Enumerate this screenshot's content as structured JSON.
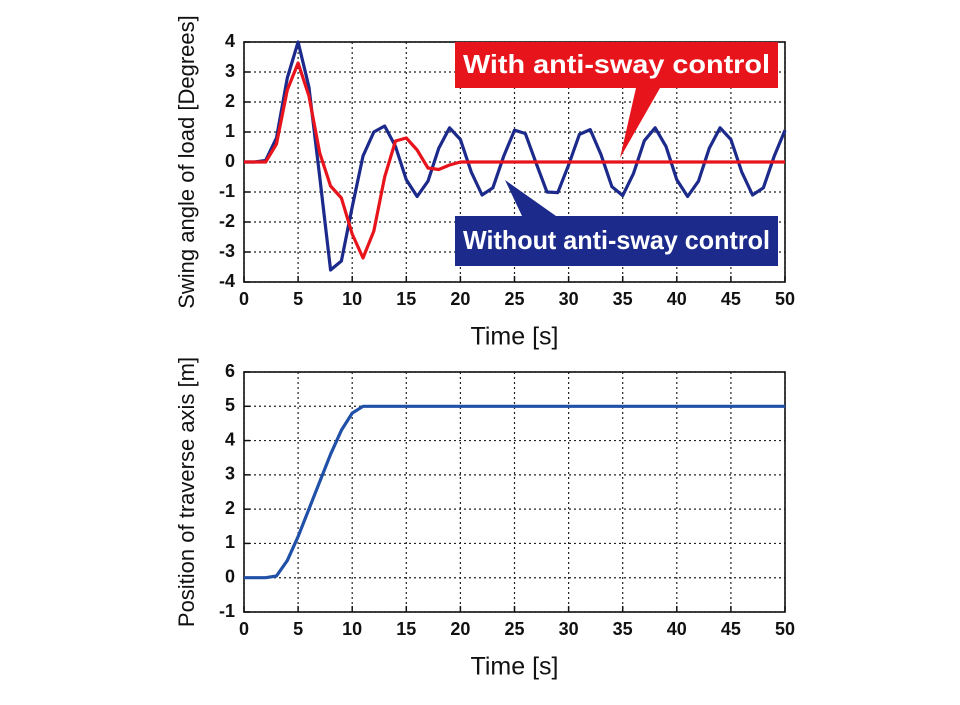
{
  "chart_data": [
    {
      "type": "line",
      "x": [
        0,
        1,
        2,
        3,
        4,
        5,
        6,
        7,
        8,
        9,
        10,
        11,
        12,
        13,
        14,
        15,
        16,
        17,
        18,
        19,
        20,
        21,
        22,
        23,
        24,
        25,
        26,
        27,
        28,
        29,
        30,
        31,
        32,
        33,
        34,
        35,
        36,
        37,
        38,
        39,
        40,
        41,
        42,
        43,
        44,
        45,
        46,
        47,
        48,
        49,
        50
      ],
      "series": [
        {
          "name": "Without anti-sway control",
          "color": "#1c2a8c",
          "values": [
            0,
            0,
            0.05,
            0.8,
            2.8,
            4,
            2.5,
            -0.5,
            -3.6,
            -3.3,
            -1.5,
            0.2,
            1.0,
            1.2,
            0.52,
            -0.59,
            -1.15,
            -0.64,
            0.46,
            1.14,
            0.75,
            -0.33,
            -1.1,
            -0.86,
            0.19,
            1.06,
            0.95,
            -0.04,
            -1.0,
            -1.02,
            -0.1,
            0.92,
            1.08,
            0.24,
            -0.82,
            -1.12,
            -0.38,
            0.71,
            1.14,
            0.52,
            -0.59,
            -1.15,
            -0.64,
            0.46,
            1.14,
            0.75,
            -0.33,
            -1.1,
            -0.86,
            0.19,
            1.06
          ]
        },
        {
          "name": "With anti-sway control",
          "color": "#e8141c",
          "values": [
            0,
            0,
            0,
            0.6,
            2.4,
            3.3,
            2.2,
            0.3,
            -0.8,
            -1.2,
            -2.4,
            -3.2,
            -2.3,
            -0.5,
            0.7,
            0.8,
            0.4,
            -0.2,
            -0.25,
            -0.1,
            0,
            0,
            0,
            0,
            0,
            0,
            0,
            0,
            0,
            0,
            0,
            0,
            0,
            0,
            0,
            0,
            0,
            0,
            0,
            0,
            0,
            0,
            0,
            0,
            0,
            0,
            0,
            0,
            0,
            0,
            0
          ]
        }
      ],
      "xlabel": "Time [s]",
      "ylabel": "Swing angle of load [Degrees]",
      "ylabel_color": "#e8141c",
      "xlim": [
        0,
        50
      ],
      "xticks": [
        0,
        5,
        10,
        15,
        20,
        25,
        30,
        35,
        40,
        45,
        50
      ],
      "ylim": [
        -4,
        4
      ],
      "yticks": [
        -4,
        -3,
        -2,
        -1,
        0,
        1,
        2,
        3,
        4
      ],
      "grid": true
    },
    {
      "type": "line",
      "x": [
        0,
        1,
        2,
        3,
        4,
        5,
        6,
        7,
        8,
        9,
        10,
        11,
        50
      ],
      "series": [
        {
          "name": "Position",
          "color": "#2050a8",
          "values": [
            0,
            0,
            0,
            0.05,
            0.5,
            1.2,
            2.0,
            2.8,
            3.6,
            4.3,
            4.8,
            5,
            5
          ]
        }
      ],
      "xlabel": "Time [s]",
      "ylabel": "Position of traverse axis [m]",
      "ylabel_color": "#111111",
      "xlim": [
        0,
        50
      ],
      "xticks": [
        0,
        5,
        10,
        15,
        20,
        25,
        30,
        35,
        40,
        45,
        50
      ],
      "ylim": [
        -1,
        6
      ],
      "yticks": [
        -1,
        0,
        1,
        2,
        3,
        4,
        5,
        6
      ],
      "grid": true
    }
  ]
}
